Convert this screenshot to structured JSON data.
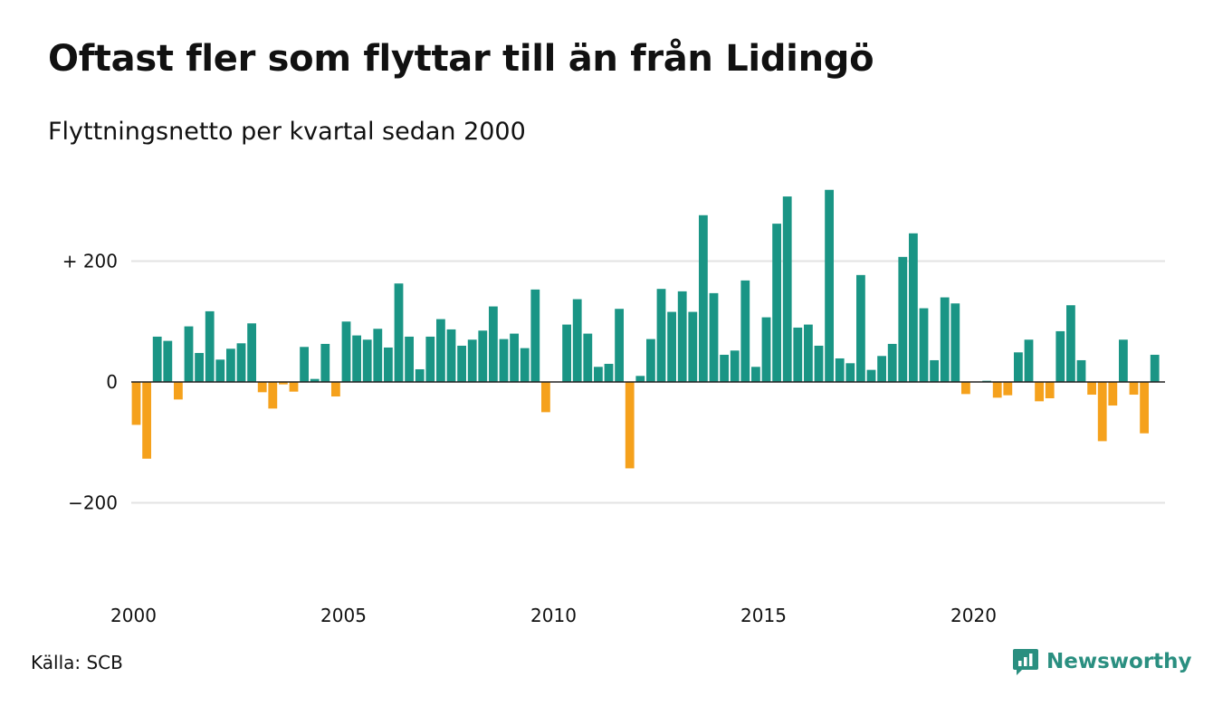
{
  "title": "Oftast fler som flyttar till än från Lidingö",
  "subtitle": "Flyttningsnetto per kvartal sedan 2000",
  "source": "Källa: SCB",
  "brand": {
    "name": "Newsworthy",
    "icon": "newsworthy-logo-icon",
    "color": "#2a8f80"
  },
  "chart_data": {
    "type": "bar",
    "title": "Oftast fler som flyttar till än från Lidingö",
    "subtitle": "Flyttningsnetto per kvartal sedan 2000",
    "xlabel": "",
    "ylabel": "",
    "x_start": "2000-Q1",
    "ylim": [
      -300,
      320
    ],
    "y_ticks": [
      {
        "value": 200,
        "label": "+ 200"
      },
      {
        "value": 0,
        "label": "0"
      },
      {
        "value": -200,
        "label": "−200"
      }
    ],
    "x_ticks": [
      {
        "year": 2000,
        "label": "2000"
      },
      {
        "year": 2005,
        "label": "2005"
      },
      {
        "year": 2010,
        "label": "2010"
      },
      {
        "year": 2015,
        "label": "2015"
      },
      {
        "year": 2020,
        "label": "2020"
      }
    ],
    "grid": true,
    "legend": "none",
    "colors": {
      "positive": "#1a9585",
      "negative": "#f5a11c",
      "grid": "#e3e3e3",
      "axis": "#222222"
    },
    "series": [
      {
        "values": [
          -71,
          -127,
          75,
          68,
          -29,
          92,
          48,
          117,
          37,
          55,
          64,
          97,
          -17,
          -44,
          -4,
          -16,
          58,
          5,
          63,
          -24,
          100,
          77,
          70,
          88,
          57,
          163,
          75,
          21,
          75,
          104,
          87,
          60,
          70,
          85,
          125,
          71,
          80,
          56,
          153,
          -50,
          0,
          95,
          137,
          80,
          25,
          30,
          121,
          -143,
          10,
          71,
          154,
          116,
          150,
          116,
          276,
          147,
          45,
          52,
          168,
          25,
          107,
          262,
          307,
          90,
          95,
          60,
          318,
          39,
          31,
          177,
          20,
          43,
          63,
          207,
          246,
          122,
          36,
          140,
          130,
          -20,
          0,
          2,
          -26,
          -22,
          49,
          70,
          -32,
          -27,
          84,
          127,
          36,
          -21,
          -98,
          -39,
          70,
          -21,
          -85,
          45
        ]
      }
    ]
  }
}
